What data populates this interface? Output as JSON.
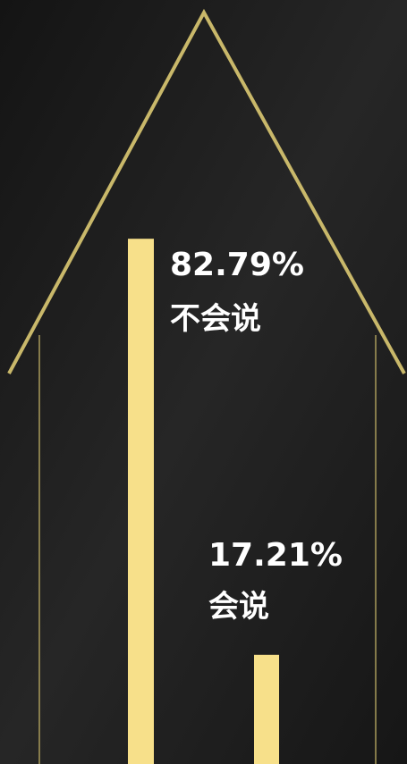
{
  "chart_data": {
    "type": "bar",
    "categories": [
      "不会说",
      "会说"
    ],
    "values": [
      82.79,
      17.21
    ],
    "value_labels": [
      "82.79%",
      "17.21%"
    ],
    "color": "#f7e08a"
  }
}
